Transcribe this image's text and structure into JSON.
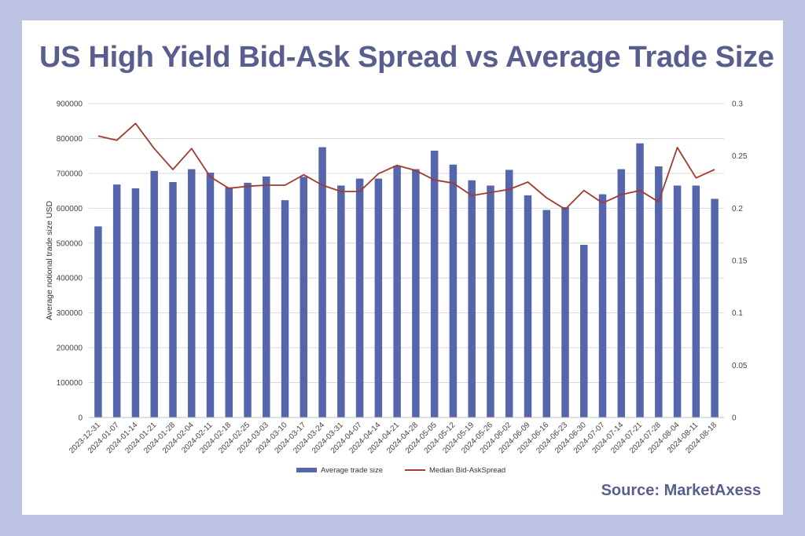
{
  "title": "US High Yield Bid-Ask Spread vs Average Trade Size",
  "source": "Source: MarketAxess",
  "colors": {
    "bar": "#5566ad",
    "line": "#a23a32",
    "title": "#585e8e",
    "frame": "#bdc3e3"
  },
  "chart_data": {
    "type": "bar",
    "title": "US High Yield Bid-Ask Spread vs Average Trade Size",
    "ylabel": "Average notional trade size USD",
    "ylim": [
      0,
      900000
    ],
    "y2lim": [
      0,
      0.3
    ],
    "yticks": [
      "0",
      "100000",
      "200000",
      "300000",
      "400000",
      "500000",
      "600000",
      "700000",
      "800000",
      "900000"
    ],
    "y2ticks": [
      "0",
      "0.05",
      "0.1",
      "0.15",
      "0.2",
      "0.25",
      "0.3"
    ],
    "legend_position": "bottom",
    "grid": true,
    "categories": [
      "2023-12-31",
      "2024-01-07",
      "2024-01-14",
      "2024-01-21",
      "2024-01-28",
      "2024-02-04",
      "2024-02-11",
      "2024-02-18",
      "2024-02-25",
      "2024-03-03",
      "2024-03-10",
      "2024-03-17",
      "2024-03-24",
      "2024-03-31",
      "2024-04-07",
      "2024-04-14",
      "2024-04-21",
      "2024-04-28",
      "2024-05-05",
      "2024-05-12",
      "2024-05-19",
      "2024-05-26",
      "2024-06-02",
      "2024-06-09",
      "2024-06-16",
      "2024-06-23",
      "2024-06-30",
      "2024-07-07",
      "2024-07-14",
      "2024-07-21",
      "2024-07-28",
      "2024-08-04",
      "2024-08-11",
      "2024-08-18"
    ],
    "series": [
      {
        "name": "Average trade size",
        "type": "bar",
        "axis": "left",
        "values": [
          548000,
          668000,
          657000,
          707000,
          675000,
          712000,
          702000,
          660000,
          673000,
          691000,
          623000,
          690000,
          775000,
          665000,
          685000,
          685000,
          722000,
          712000,
          765000,
          725000,
          680000,
          665000,
          710000,
          637000,
          595000,
          603000,
          495000,
          640000,
          712000,
          786000,
          720000,
          665000,
          665000,
          627000
        ]
      },
      {
        "name": "Median Bid-AskSpread",
        "type": "line",
        "axis": "right",
        "values": [
          0.269,
          0.265,
          0.281,
          0.257,
          0.237,
          0.257,
          0.23,
          0.219,
          0.221,
          0.222,
          0.222,
          0.232,
          0.222,
          0.216,
          0.216,
          0.233,
          0.241,
          0.236,
          0.227,
          0.224,
          0.212,
          0.215,
          0.218,
          0.225,
          0.21,
          0.199,
          0.217,
          0.205,
          0.213,
          0.217,
          0.206,
          0.258,
          0.229,
          0.237
        ]
      }
    ]
  }
}
